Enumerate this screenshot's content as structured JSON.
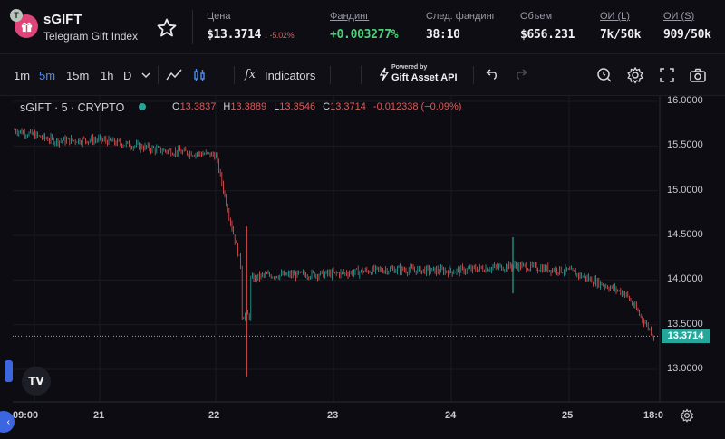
{
  "header": {
    "symbol": "sGIFT",
    "subtitle": "Telegram Gift Index",
    "badge_letter": "T",
    "stats": [
      {
        "label": "Цена",
        "value": "$13.3714",
        "change": "↓ -5.02%",
        "underline": false
      },
      {
        "label": "Фандинг",
        "value": "+0.003277%",
        "underline": true
      },
      {
        "label": "След. фандинг",
        "value": "38:10",
        "underline": false
      },
      {
        "label": "Объем",
        "value": "$656.231",
        "underline": false
      },
      {
        "label": "ОИ (L)",
        "value": "7k/50k",
        "underline": true
      },
      {
        "label": "ОИ (S)",
        "value": "909/50k",
        "underline": true
      }
    ]
  },
  "toolbar": {
    "timeframes": [
      "1m",
      "5m",
      "15m",
      "1h",
      "D"
    ],
    "active_timeframe": "5m",
    "indicators_label": "Indicators",
    "fx_label": "fx",
    "powered_line1": "Powered by",
    "powered_line2": "Gift Asset API"
  },
  "legend": {
    "title": "sGIFT · 5 · CRYPTO",
    "open_label": "O",
    "open": "13.3837",
    "high_label": "H",
    "high": "13.3889",
    "low_label": "L",
    "low": "13.3546",
    "close_label": "C",
    "close": "13.3714",
    "change": "-0.012338 (−0.09%)"
  },
  "tv_logo": "TV",
  "chart_data": {
    "type": "line",
    "x": [
      "20 09:00",
      "20 18:00",
      "21 00:00",
      "21 12:00",
      "22 00:00",
      "22 08:00",
      "22 08:30",
      "22 12:00",
      "23 00:00",
      "23 12:00",
      "24 00:00",
      "24 12:00",
      "25 00:00",
      "25 12:00",
      "25 18:00"
    ],
    "series": [
      {
        "values": [
          15.68,
          15.56,
          15.57,
          15.45,
          15.4,
          14.85,
          13.98,
          14.05,
          14.07,
          14.12,
          14.1,
          14.16,
          14.1,
          13.85,
          13.37
        ]
      }
    ],
    "ylim": [
      12.8,
      16.05
    ],
    "y_ticks": [
      "16.0000",
      "15.5000",
      "15.0000",
      "14.5000",
      "14.0000",
      "13.5000",
      "13.0000"
    ],
    "x_ticks": [
      "09:00",
      "21",
      "22",
      "23",
      "24",
      "25",
      "18:0"
    ],
    "last_price": "13.3714",
    "up_color": "#26a69a",
    "down_color": "#ef5350",
    "grid": true
  }
}
